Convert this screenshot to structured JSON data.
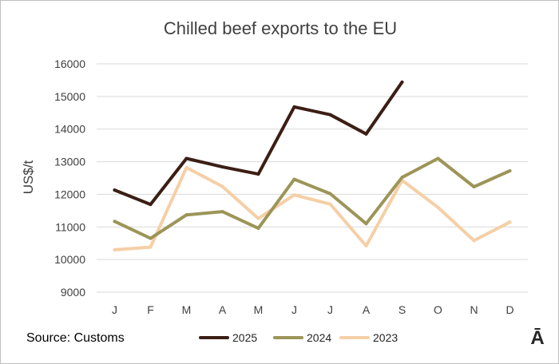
{
  "chart_data": {
    "type": "line",
    "title": "Chilled beef exports to the EU",
    "ylabel": "US$/t",
    "xlabel": "",
    "categories": [
      "J",
      "F",
      "M",
      "A",
      "M",
      "J",
      "J",
      "A",
      "S",
      "O",
      "N",
      "D"
    ],
    "ylim": [
      9000,
      16000
    ],
    "yticks": [
      9000,
      10000,
      11000,
      12000,
      13000,
      14000,
      15000,
      16000
    ],
    "grid": true,
    "series": [
      {
        "name": "2025",
        "color": "#3b1e14",
        "values": [
          12130,
          11690,
          13100,
          12840,
          12620,
          14680,
          14440,
          13850,
          15440,
          null,
          null,
          null
        ]
      },
      {
        "name": "2024",
        "color": "#9c9558",
        "values": [
          11170,
          10650,
          11370,
          11470,
          10960,
          12460,
          12020,
          11100,
          12520,
          13100,
          12230,
          12720
        ]
      },
      {
        "name": "2023",
        "color": "#f5cfa6",
        "values": [
          10300,
          10380,
          12820,
          12240,
          11260,
          11980,
          11700,
          10420,
          12430,
          11600,
          10580,
          11150
        ]
      }
    ],
    "legend_position": "bottom"
  },
  "source_text": "Source: Customs",
  "logo_text": "Ā"
}
